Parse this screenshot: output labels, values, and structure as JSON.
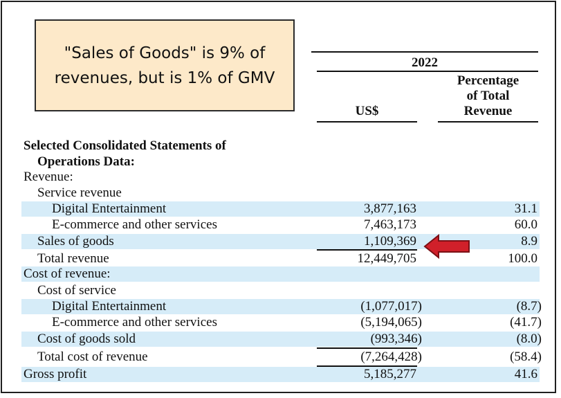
{
  "callout": {
    "line1": "\"Sales of Goods\" is 9% of",
    "line2": "revenues, but is 1% of GMV"
  },
  "header": {
    "year": "2022",
    "col_usd": "US$",
    "col_pct_1": "Percentage",
    "col_pct_2": "of Total",
    "col_pct_3": "Revenue"
  },
  "section": {
    "title_1": "Selected Consolidated Statements of",
    "title_2": "Operations Data:"
  },
  "rows": [
    {
      "label": "Revenue:",
      "usd": "",
      "pct": ""
    },
    {
      "label": "Service revenue",
      "usd": "",
      "pct": ""
    },
    {
      "label": "Digital Entertainment",
      "usd": "3,877,163",
      "pct": "31.1"
    },
    {
      "label": "E-commerce and other services",
      "usd": "7,463,173",
      "pct": "60.0"
    },
    {
      "label": "Sales of goods",
      "usd": "1,109,369",
      "pct": "8.9"
    },
    {
      "label": "Total revenue",
      "usd": "12,449,705",
      "pct": "100.0"
    },
    {
      "label": "Cost of revenue:",
      "usd": "",
      "pct": ""
    },
    {
      "label": "Cost of service",
      "usd": "",
      "pct": ""
    },
    {
      "label": "Digital Entertainment",
      "usd": "(1,077,017)",
      "pct": "(8.7)"
    },
    {
      "label": "E-commerce and other services",
      "usd": "(5,194,065)",
      "pct": "(41.7)"
    },
    {
      "label": "Cost of goods sold",
      "usd": "(993,346)",
      "pct": "(8.0)"
    },
    {
      "label": "Total cost of revenue",
      "usd": "(7,264,428)",
      "pct": "(58.4)"
    },
    {
      "label": "Gross profit",
      "usd": "5,185,277",
      "pct": "41.6"
    }
  ],
  "colors": {
    "band": "#d6ecf8",
    "callout_bg": "#fde9c9",
    "arrow": "#d0202a"
  }
}
